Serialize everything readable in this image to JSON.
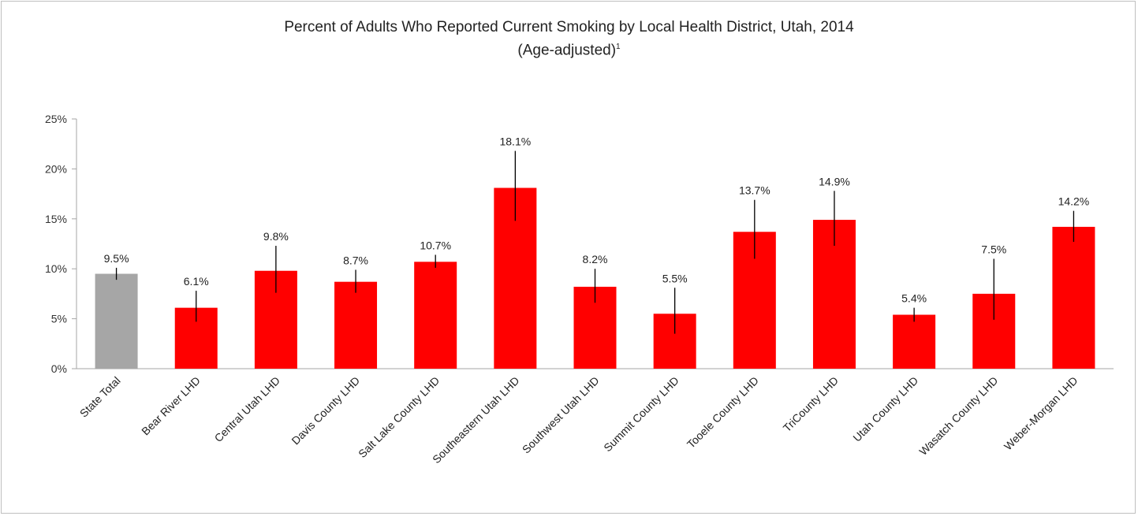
{
  "chart_data": {
    "type": "bar",
    "title": "Percent of Adults Who Reported Current Smoking by Local Health District, Utah, 2014",
    "subtitle": "(Age-adjusted)",
    "subtitle_footnote": "1",
    "xlabel": "",
    "ylabel": "",
    "ylim": [
      0,
      25
    ],
    "yticks": [
      "0%",
      "5%",
      "10%",
      "15%",
      "20%",
      "25%"
    ],
    "ytick_values": [
      0,
      5,
      10,
      15,
      20,
      25
    ],
    "grid": false,
    "legend": "none",
    "categories": [
      "State Total",
      "Bear River LHD",
      "Central Utah LHD",
      "Davis County LHD",
      "Salt Lake County LHD",
      "Southeastern Utah LHD",
      "Southwest Utah LHD",
      "Summit County LHD",
      "Tooele County LHD",
      "TriCounty LHD",
      "Utah County LHD",
      "Wasatch County LHD",
      "Weber-Morgan LHD"
    ],
    "values": [
      9.5,
      6.1,
      9.8,
      8.7,
      10.7,
      18.1,
      8.2,
      5.5,
      13.7,
      14.9,
      5.4,
      7.5,
      14.2
    ],
    "data_labels": [
      "9.5%",
      "6.1%",
      "9.8%",
      "8.7%",
      "10.7%",
      "18.1%",
      "8.2%",
      "5.5%",
      "13.7%",
      "14.9%",
      "5.4%",
      "7.5%",
      "14.2%"
    ],
    "error_low": [
      8.9,
      4.7,
      7.6,
      7.6,
      10.1,
      14.8,
      6.6,
      3.5,
      11.0,
      12.3,
      4.7,
      4.9,
      12.7
    ],
    "error_high": [
      10.1,
      7.8,
      12.3,
      9.9,
      11.4,
      21.8,
      10.0,
      8.1,
      16.9,
      17.8,
      6.1,
      11.0,
      15.8
    ],
    "bar_colors": [
      "#a6a6a6",
      "#ff0000",
      "#ff0000",
      "#ff0000",
      "#ff0000",
      "#ff0000",
      "#ff0000",
      "#ff0000",
      "#ff0000",
      "#ff0000",
      "#ff0000",
      "#ff0000",
      "#ff0000"
    ],
    "errorbar_color": "#000000",
    "axis_color": "#a6a6a6"
  }
}
